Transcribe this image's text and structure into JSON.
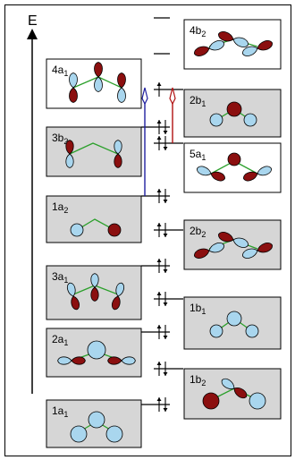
{
  "energy_axis_label": "E",
  "orbitals": [
    {
      "id": "4b2",
      "name": "4b",
      "sub": "2",
      "side": "right",
      "shaded": false,
      "occupancy": 0
    },
    {
      "id": "4a1",
      "name": "4a",
      "sub": "1",
      "side": "left",
      "shaded": false,
      "occupancy": 0
    },
    {
      "id": "2b1",
      "name": "2b",
      "sub": "1",
      "side": "right",
      "shaded": true,
      "occupancy": 1
    },
    {
      "id": "3b2",
      "name": "3b",
      "sub": "2",
      "side": "left",
      "shaded": true,
      "occupancy": 2
    },
    {
      "id": "5a1",
      "name": "5a",
      "sub": "1",
      "side": "right",
      "shaded": false,
      "occupancy": 2
    },
    {
      "id": "1a2",
      "name": "1a",
      "sub": "2",
      "side": "left",
      "shaded": true,
      "occupancy": 2
    },
    {
      "id": "2b2",
      "name": "2b",
      "sub": "2",
      "side": "right",
      "shaded": true,
      "occupancy": 2
    },
    {
      "id": "3a1",
      "name": "3a",
      "sub": "1",
      "side": "left",
      "shaded": true,
      "occupancy": 2
    },
    {
      "id": "1b1",
      "name": "1b",
      "sub": "1",
      "side": "right",
      "shaded": true,
      "occupancy": 2
    },
    {
      "id": "2a1",
      "name": "2a",
      "sub": "1",
      "side": "left",
      "shaded": true,
      "occupancy": 2
    },
    {
      "id": "1b2",
      "name": "1b",
      "sub": "2",
      "side": "right",
      "shaded": true,
      "occupancy": 2
    },
    {
      "id": "1a1",
      "name": "1a",
      "sub": "1",
      "side": "left",
      "shaded": true,
      "occupancy": 2
    }
  ],
  "colors": {
    "lobe_positive": "#a9d6ee",
    "lobe_negative": "#8b0f0f",
    "bond": "#2ca02c",
    "transition_blue": "#1f1fa0",
    "transition_red": "#b01010",
    "box_shaded": "#d6d6d6",
    "box_light": "#efefef"
  }
}
